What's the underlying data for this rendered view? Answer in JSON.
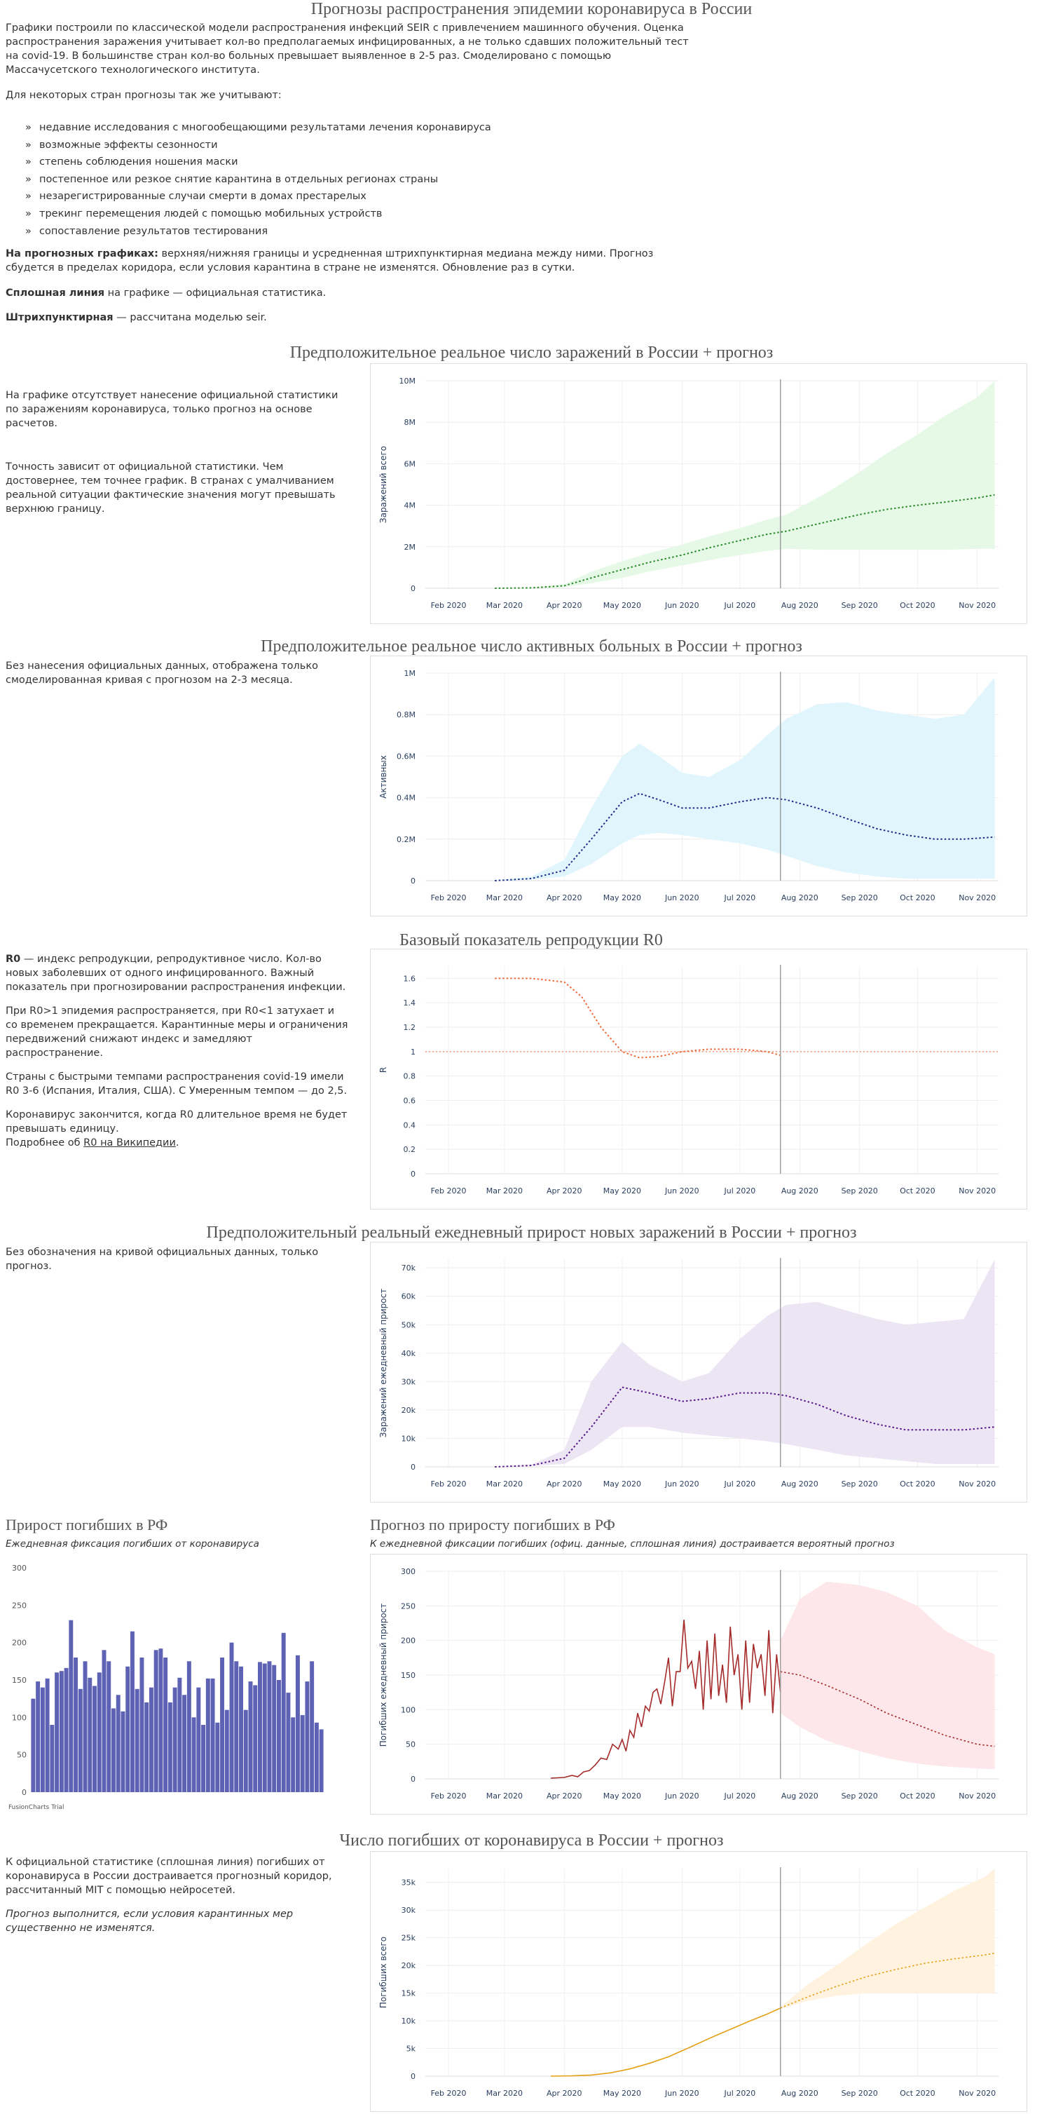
{
  "page": {
    "title": "Прогнозы распространения эпидемии коронавируса в России",
    "intro": "Графики построили по классической модели распространения инфекций SEIR с привлечением машинного обучения. Оценка распространения заражения учитывает кол-во предполагаемых инфицированных, а не только сдавших положительный тест на covid-19. В большинстве стран кол-во больных превышает выявленное в 2-5 раз. Смоделировано с помощью Массачусетского технологического института.",
    "countries_note": "Для некоторых стран прогнозы так же учитывают:",
    "factors": [
      "недавние исследования с многообещающими результатами лечения коронавируса",
      "возможные эффекты сезонности",
      "степень соблюдения ношения маски",
      "постепенное или резкое снятие карантина в отдельных регионах страны",
      "незарегистрированные случаи смерти в домах престарелых",
      "трекинг перемещения людей с помощью мобильных устройств",
      "сопоставление результатов тестирования"
    ],
    "forecast_bold": "На прогнозных графиках:",
    "forecast_text": " верхняя/нижняя границы и усредненная штрихпунктирная медиана между ними. Прогноз сбудется в пределах коридора, если условия карантина в стране не изменятся. Обновление раз в сутки.",
    "solid_bold": "Сплошная линия",
    "solid_text": " на графике — официальная статистика.",
    "dash_bold": "Штрихпунктирная",
    "dash_text": " — рассчитана моделью seir."
  },
  "sections": {
    "s1": {
      "title": "Предположительное реальное число заражений в России + прогноз",
      "text1": "На графике отсутствует нанесение официальной статистики по заражениям коронавируса, только прогноз на основе расчетов.",
      "text2": "Точность зависит от официальной статистики. Чем достовернее, тем точнее график. В странах с умалчиванием реальной ситуации фактические значения могут превышать верхнюю границу."
    },
    "s2": {
      "title": "Предположительное реальное число активных больных в России + прогноз",
      "text1": "Без нанесения официальных данных, отображена только смоделированная кривая с прогнозом на 2-3 месяца."
    },
    "s3": {
      "title": "Базовый показатель репродукции R0",
      "r0_bold": "R0",
      "text1": " — индекс репродукции, репродуктивное число. Кол-во новых заболевших от одного инфицированного. Важный показатель при прогнозировании распространения инфекции.",
      "text2": "При R0>1 эпидемия распространяется, при R0<1 затухает и со временем прекращается. Карантинные меры и ограничения передвижений снижают индекс и замедляют распространение.",
      "text3": "Страны с быстрыми темпами распространения covid-19 имели R0 3-6 (Испания, Италия, США). С Умеренным темпом — до 2,5.",
      "text4": "Коронавирус закончится, когда R0 длительное время не будет превышать единицу.",
      "text5": "Подробнее об ",
      "link": "R0 на Википедии",
      "text6": "."
    },
    "s4": {
      "title": "Предположительный реальный ежедневный прирост новых заражений в России + прогноз",
      "text1": "Без обозначения на кривой официальных данных, только прогноз."
    },
    "s5": {
      "title": "Прирост погибших в РФ",
      "sub": "Ежедневная фиксация погибших от коронавируса",
      "credit": "FusionCharts Trial"
    },
    "s6": {
      "title": "Прогноз по приросту погибших в РФ",
      "sub": "К ежедневной фиксации погибших (офиц. данные, сплошная линия) достраивается вероятный прогноз"
    },
    "s7": {
      "title": "Число погибших от коронавируса в России + прогноз",
      "text1": "К официальной статистике (сплошная линия) погибших от коронавируса в России достраивается прогнозный коридор, рассчитанный MIT с помощью нейросетей.",
      "text2": "Прогноз выполнится, если условия карантинных мер существенно не изменятся."
    }
  },
  "chart_data": [
    {
      "id": "infections",
      "type": "area",
      "ylabel": "Заражений всего",
      "x": [
        "2020-02-25",
        "2020-03-15",
        "2020-04-01",
        "2020-04-15",
        "2020-05-01",
        "2020-05-15",
        "2020-06-01",
        "2020-06-15",
        "2020-07-01",
        "2020-07-15",
        "2020-07-25",
        "2020-08-15",
        "2020-09-01",
        "2020-09-15",
        "2020-10-01",
        "2020-10-15",
        "2020-11-01",
        "2020-11-10"
      ],
      "median": [
        0,
        0.02,
        0.12,
        0.5,
        0.9,
        1.25,
        1.6,
        1.95,
        2.3,
        2.6,
        2.75,
        3.2,
        3.55,
        3.8,
        4.0,
        4.15,
        4.35,
        4.5
      ],
      "upper": [
        0,
        0.03,
        0.2,
        0.8,
        1.3,
        1.7,
        2.1,
        2.5,
        2.9,
        3.3,
        3.55,
        4.6,
        5.6,
        6.5,
        7.4,
        8.3,
        9.2,
        10.0
      ],
      "lower": [
        0,
        0.01,
        0.05,
        0.25,
        0.5,
        0.8,
        1.1,
        1.35,
        1.6,
        1.8,
        1.9,
        1.85,
        1.85,
        1.85,
        1.85,
        1.85,
        1.9,
        1.9
      ],
      "units": "M",
      "yticks": [
        0,
        2,
        4,
        6,
        8,
        10
      ],
      "ytick_labels": [
        "0",
        "2M",
        "4M",
        "6M",
        "8M",
        "10M"
      ],
      "ylim": [
        0,
        10
      ],
      "color": "#2a8a2a",
      "band_color": "#e6f9e6",
      "today": "2020-07-22"
    },
    {
      "id": "active",
      "type": "area",
      "ylabel": "Активных",
      "x": [
        "2020-02-25",
        "2020-03-15",
        "2020-04-01",
        "2020-04-15",
        "2020-05-01",
        "2020-05-10",
        "2020-05-20",
        "2020-06-01",
        "2020-06-15",
        "2020-07-01",
        "2020-07-15",
        "2020-07-25",
        "2020-08-10",
        "2020-08-25",
        "2020-09-10",
        "2020-09-25",
        "2020-10-10",
        "2020-10-25",
        "2020-11-10"
      ],
      "median": [
        0,
        0.01,
        0.05,
        0.2,
        0.38,
        0.42,
        0.39,
        0.35,
        0.35,
        0.38,
        0.4,
        0.39,
        0.35,
        0.3,
        0.25,
        0.22,
        0.2,
        0.2,
        0.21
      ],
      "upper": [
        0,
        0.02,
        0.1,
        0.35,
        0.6,
        0.66,
        0.6,
        0.52,
        0.5,
        0.58,
        0.7,
        0.78,
        0.85,
        0.86,
        0.82,
        0.8,
        0.78,
        0.8,
        0.98
      ],
      "lower": [
        0,
        0.005,
        0.02,
        0.08,
        0.18,
        0.22,
        0.23,
        0.22,
        0.2,
        0.18,
        0.15,
        0.12,
        0.07,
        0.04,
        0.02,
        0.01,
        0.01,
        0.01,
        0.01
      ],
      "units": "M",
      "yticks": [
        0,
        0.2,
        0.4,
        0.6,
        0.8,
        1.0
      ],
      "ytick_labels": [
        "0",
        "0.2M",
        "0.4M",
        "0.6M",
        "0.8M",
        "1M"
      ],
      "ylim": [
        0,
        1.0
      ],
      "color": "#1b2f8a",
      "band_color": "#e1f5fd",
      "today": "2020-07-22"
    },
    {
      "id": "r0",
      "type": "line",
      "ylabel": "R",
      "x": [
        "2020-02-25",
        "2020-03-15",
        "2020-04-01",
        "2020-04-10",
        "2020-04-20",
        "2020-05-01",
        "2020-05-10",
        "2020-05-20",
        "2020-06-01",
        "2020-06-15",
        "2020-07-01",
        "2020-07-15",
        "2020-07-22"
      ],
      "median": [
        1.6,
        1.6,
        1.57,
        1.45,
        1.2,
        1.0,
        0.95,
        0.96,
        1.0,
        1.02,
        1.02,
        1.0,
        0.97
      ],
      "reference": 1.0,
      "yticks": [
        0,
        0.2,
        0.4,
        0.6,
        0.8,
        1,
        1.2,
        1.4,
        1.6
      ],
      "ytick_labels": [
        "0",
        "0.2",
        "0.4",
        "0.6",
        "0.8",
        "1",
        "1.2",
        "1.4",
        "1.6"
      ],
      "ylim": [
        0,
        1.7
      ],
      "color": "#ee6b3b",
      "today": "2020-07-22"
    },
    {
      "id": "daily_new",
      "type": "area",
      "ylabel": "Заражений ежедневный прирост",
      "x": [
        "2020-02-25",
        "2020-03-15",
        "2020-04-01",
        "2020-04-15",
        "2020-05-01",
        "2020-05-15",
        "2020-06-01",
        "2020-06-15",
        "2020-07-01",
        "2020-07-15",
        "2020-07-25",
        "2020-08-10",
        "2020-08-25",
        "2020-09-10",
        "2020-09-25",
        "2020-10-10",
        "2020-10-25",
        "2020-11-10"
      ],
      "median": [
        0,
        0.5,
        3,
        14,
        28,
        26,
        23,
        24,
        26,
        26,
        25,
        22,
        18,
        15,
        13,
        13,
        13,
        14
      ],
      "upper": [
        0,
        0.8,
        6,
        30,
        44,
        36,
        30,
        33,
        45,
        53,
        57,
        58,
        55,
        52,
        50,
        51,
        52,
        73
      ],
      "lower": [
        0,
        0.3,
        1,
        6,
        14,
        14,
        12,
        11,
        10,
        9,
        8,
        6,
        4,
        3,
        2,
        1,
        1,
        1
      ],
      "units": "k",
      "yticks": [
        0,
        10,
        20,
        30,
        40,
        50,
        60,
        70
      ],
      "ytick_labels": [
        "0",
        "10k",
        "20k",
        "30k",
        "40k",
        "50k",
        "60k",
        "70k"
      ],
      "ylim": [
        0,
        73
      ],
      "color": "#5a1a8a",
      "band_color": "#ece5f4",
      "today": "2020-07-22"
    },
    {
      "id": "deaths_bar",
      "type": "bar",
      "values": [
        125,
        148,
        140,
        152,
        90,
        160,
        162,
        166,
        230,
        180,
        138,
        175,
        153,
        142,
        160,
        190,
        175,
        112,
        130,
        108,
        168,
        215,
        138,
        180,
        120,
        140,
        190,
        192,
        180,
        120,
        140,
        153,
        130,
        175,
        100,
        140,
        90,
        152,
        152,
        93,
        180,
        110,
        200,
        175,
        168,
        110,
        148,
        143,
        174,
        172,
        175,
        170,
        150,
        213,
        133,
        100,
        183,
        103,
        148,
        175,
        93,
        84
      ],
      "yticks": [
        0,
        50,
        100,
        150,
        200,
        250,
        300
      ],
      "ylim": [
        0,
        300
      ],
      "color": "#5d62b5"
    },
    {
      "id": "deaths_daily_forecast",
      "type": "line",
      "ylabel": "Погибших ежедневный прирост",
      "official_x": [
        "2020-03-25",
        "2020-04-01",
        "2020-04-05",
        "2020-04-08",
        "2020-04-11",
        "2020-04-14",
        "2020-04-17",
        "2020-04-20",
        "2020-04-23",
        "2020-04-26",
        "2020-04-29",
        "2020-05-01",
        "2020-05-03",
        "2020-05-05",
        "2020-05-07",
        "2020-05-09",
        "2020-05-11",
        "2020-05-13",
        "2020-05-15",
        "2020-05-17",
        "2020-05-19",
        "2020-05-21",
        "2020-05-23",
        "2020-05-25",
        "2020-05-27",
        "2020-05-29",
        "2020-05-31",
        "2020-06-02",
        "2020-06-04",
        "2020-06-06",
        "2020-06-08",
        "2020-06-10",
        "2020-06-12",
        "2020-06-14",
        "2020-06-16",
        "2020-06-18",
        "2020-06-20",
        "2020-06-22",
        "2020-06-24",
        "2020-06-26",
        "2020-06-28",
        "2020-06-30",
        "2020-07-02",
        "2020-07-04",
        "2020-07-06",
        "2020-07-08",
        "2020-07-10",
        "2020-07-12",
        "2020-07-14",
        "2020-07-16",
        "2020-07-18",
        "2020-07-20",
        "2020-07-22"
      ],
      "official": [
        1,
        2,
        5,
        3,
        10,
        12,
        20,
        30,
        28,
        50,
        43,
        57,
        40,
        70,
        60,
        95,
        75,
        105,
        98,
        125,
        130,
        108,
        140,
        175,
        105,
        155,
        155,
        230,
        160,
        170,
        130,
        185,
        100,
        200,
        115,
        210,
        120,
        165,
        110,
        220,
        150,
        180,
        100,
        200,
        110,
        195,
        160,
        180,
        120,
        215,
        95,
        180,
        125
      ],
      "forecast_x": [
        "2020-07-22",
        "2020-08-01",
        "2020-08-15",
        "2020-09-01",
        "2020-09-15",
        "2020-10-01",
        "2020-10-15",
        "2020-11-01",
        "2020-11-10"
      ],
      "forecast": [
        155,
        150,
        135,
        115,
        95,
        78,
        63,
        50,
        47
      ],
      "upper": [
        200,
        260,
        285,
        280,
        270,
        250,
        215,
        190,
        180
      ],
      "lower": [
        95,
        75,
        55,
        40,
        30,
        22,
        18,
        15,
        14
      ],
      "yticks": [
        0,
        50,
        100,
        150,
        200,
        250,
        300
      ],
      "ytick_labels": [
        "0",
        "50",
        "100",
        "150",
        "200",
        "250",
        "300"
      ],
      "ylim": [
        0,
        300
      ],
      "color": "#a52a2a",
      "band_color": "#fde7ea",
      "today": "2020-07-22"
    },
    {
      "id": "deaths_total",
      "type": "area",
      "ylabel": "Погибших всего",
      "official_x": [
        "2020-03-25",
        "2020-04-05",
        "2020-04-15",
        "2020-04-25",
        "2020-05-05",
        "2020-05-15",
        "2020-05-25",
        "2020-06-05",
        "2020-06-15",
        "2020-06-25",
        "2020-07-05",
        "2020-07-15",
        "2020-07-22"
      ],
      "official": [
        0,
        0.05,
        0.2,
        0.6,
        1.3,
        2.3,
        3.5,
        5.2,
        6.8,
        8.3,
        9.8,
        11.2,
        12.3
      ],
      "forecast_x": [
        "2020-07-22",
        "2020-08-05",
        "2020-08-20",
        "2020-09-05",
        "2020-09-20",
        "2020-10-05",
        "2020-10-20",
        "2020-11-05",
        "2020-11-10"
      ],
      "forecast": [
        12.3,
        14.3,
        16.2,
        18.0,
        19.3,
        20.4,
        21.2,
        21.9,
        22.2
      ],
      "upper": [
        12.5,
        16.5,
        20.0,
        24.0,
        27.5,
        30.5,
        33.5,
        36.0,
        37.5
      ],
      "lower": [
        12.1,
        13.6,
        14.5,
        15.0,
        15.0,
        15.0,
        15.0,
        15.0,
        15.0
      ],
      "units": "k",
      "yticks": [
        0,
        5,
        10,
        15,
        20,
        25,
        30,
        35
      ],
      "ytick_labels": [
        "0",
        "5k",
        "10k",
        "15k",
        "20k",
        "25k",
        "30k",
        "35k"
      ],
      "ylim": [
        0,
        37.5
      ],
      "color": "#e5a015",
      "band_color": "#fff3e0",
      "today": "2020-07-22"
    }
  ],
  "x_axis": {
    "ticks": [
      "2020-02-01",
      "2020-03-01",
      "2020-04-01",
      "2020-05-01",
      "2020-06-01",
      "2020-07-01",
      "2020-08-01",
      "2020-09-01",
      "2020-10-01",
      "2020-11-01"
    ],
    "labels": [
      "Feb 2020",
      "Mar 2020",
      "Apr 2020",
      "May 2020",
      "Jun 2020",
      "Jul 2020",
      "Aug 2020",
      "Sep 2020",
      "Oct 2020",
      "Nov 2020"
    ],
    "range": [
      "2020-01-20",
      "2020-11-12"
    ]
  }
}
